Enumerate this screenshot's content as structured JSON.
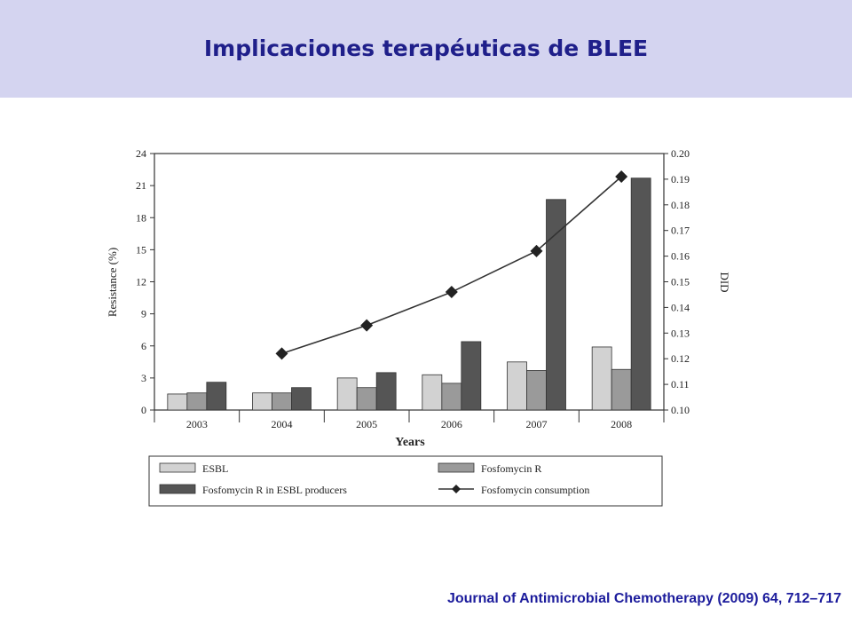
{
  "slide": {
    "title": "Implicaciones terapéuticas de BLEE",
    "citation": "Journal of Antimicrobial Chemotherapy (2009) 64, 712–717"
  },
  "chart_data": {
    "type": "bar",
    "categories": [
      "2003",
      "2004",
      "2005",
      "2006",
      "2007",
      "2008"
    ],
    "xlabel": "Years",
    "ylabel": "Resistance (%)",
    "y2label": "DID",
    "ylim": [
      0,
      24
    ],
    "y2lim": [
      0.1,
      0.2
    ],
    "yticks": [
      "0",
      "3",
      "6",
      "9",
      "12",
      "15",
      "18",
      "21",
      "24"
    ],
    "y2ticks": [
      "0.10",
      "0.11",
      "0.12",
      "0.13",
      "0.14",
      "0.15",
      "0.16",
      "0.17",
      "0.18",
      "0.19",
      "0.20"
    ],
    "grid": false,
    "legend_position": "bottom",
    "series": [
      {
        "name": "ESBL",
        "kind": "bar",
        "color": "#d2d2d2",
        "values": [
          1.5,
          1.6,
          3.0,
          3.3,
          4.5,
          5.9
        ]
      },
      {
        "name": "Fosfomycin R",
        "kind": "bar",
        "color": "#9a9a9a",
        "values": [
          1.6,
          1.6,
          2.1,
          2.5,
          3.7,
          3.8
        ]
      },
      {
        "name": "Fosfomycin R in ESBL producers",
        "kind": "bar",
        "color": "#555555",
        "values": [
          2.6,
          2.1,
          3.5,
          6.4,
          19.7,
          21.7
        ]
      },
      {
        "name": "Fosfomycin consumption",
        "kind": "line",
        "axis": "right",
        "color": "#333333",
        "values": [
          null,
          0.122,
          0.133,
          0.146,
          0.162,
          0.191
        ]
      }
    ]
  }
}
